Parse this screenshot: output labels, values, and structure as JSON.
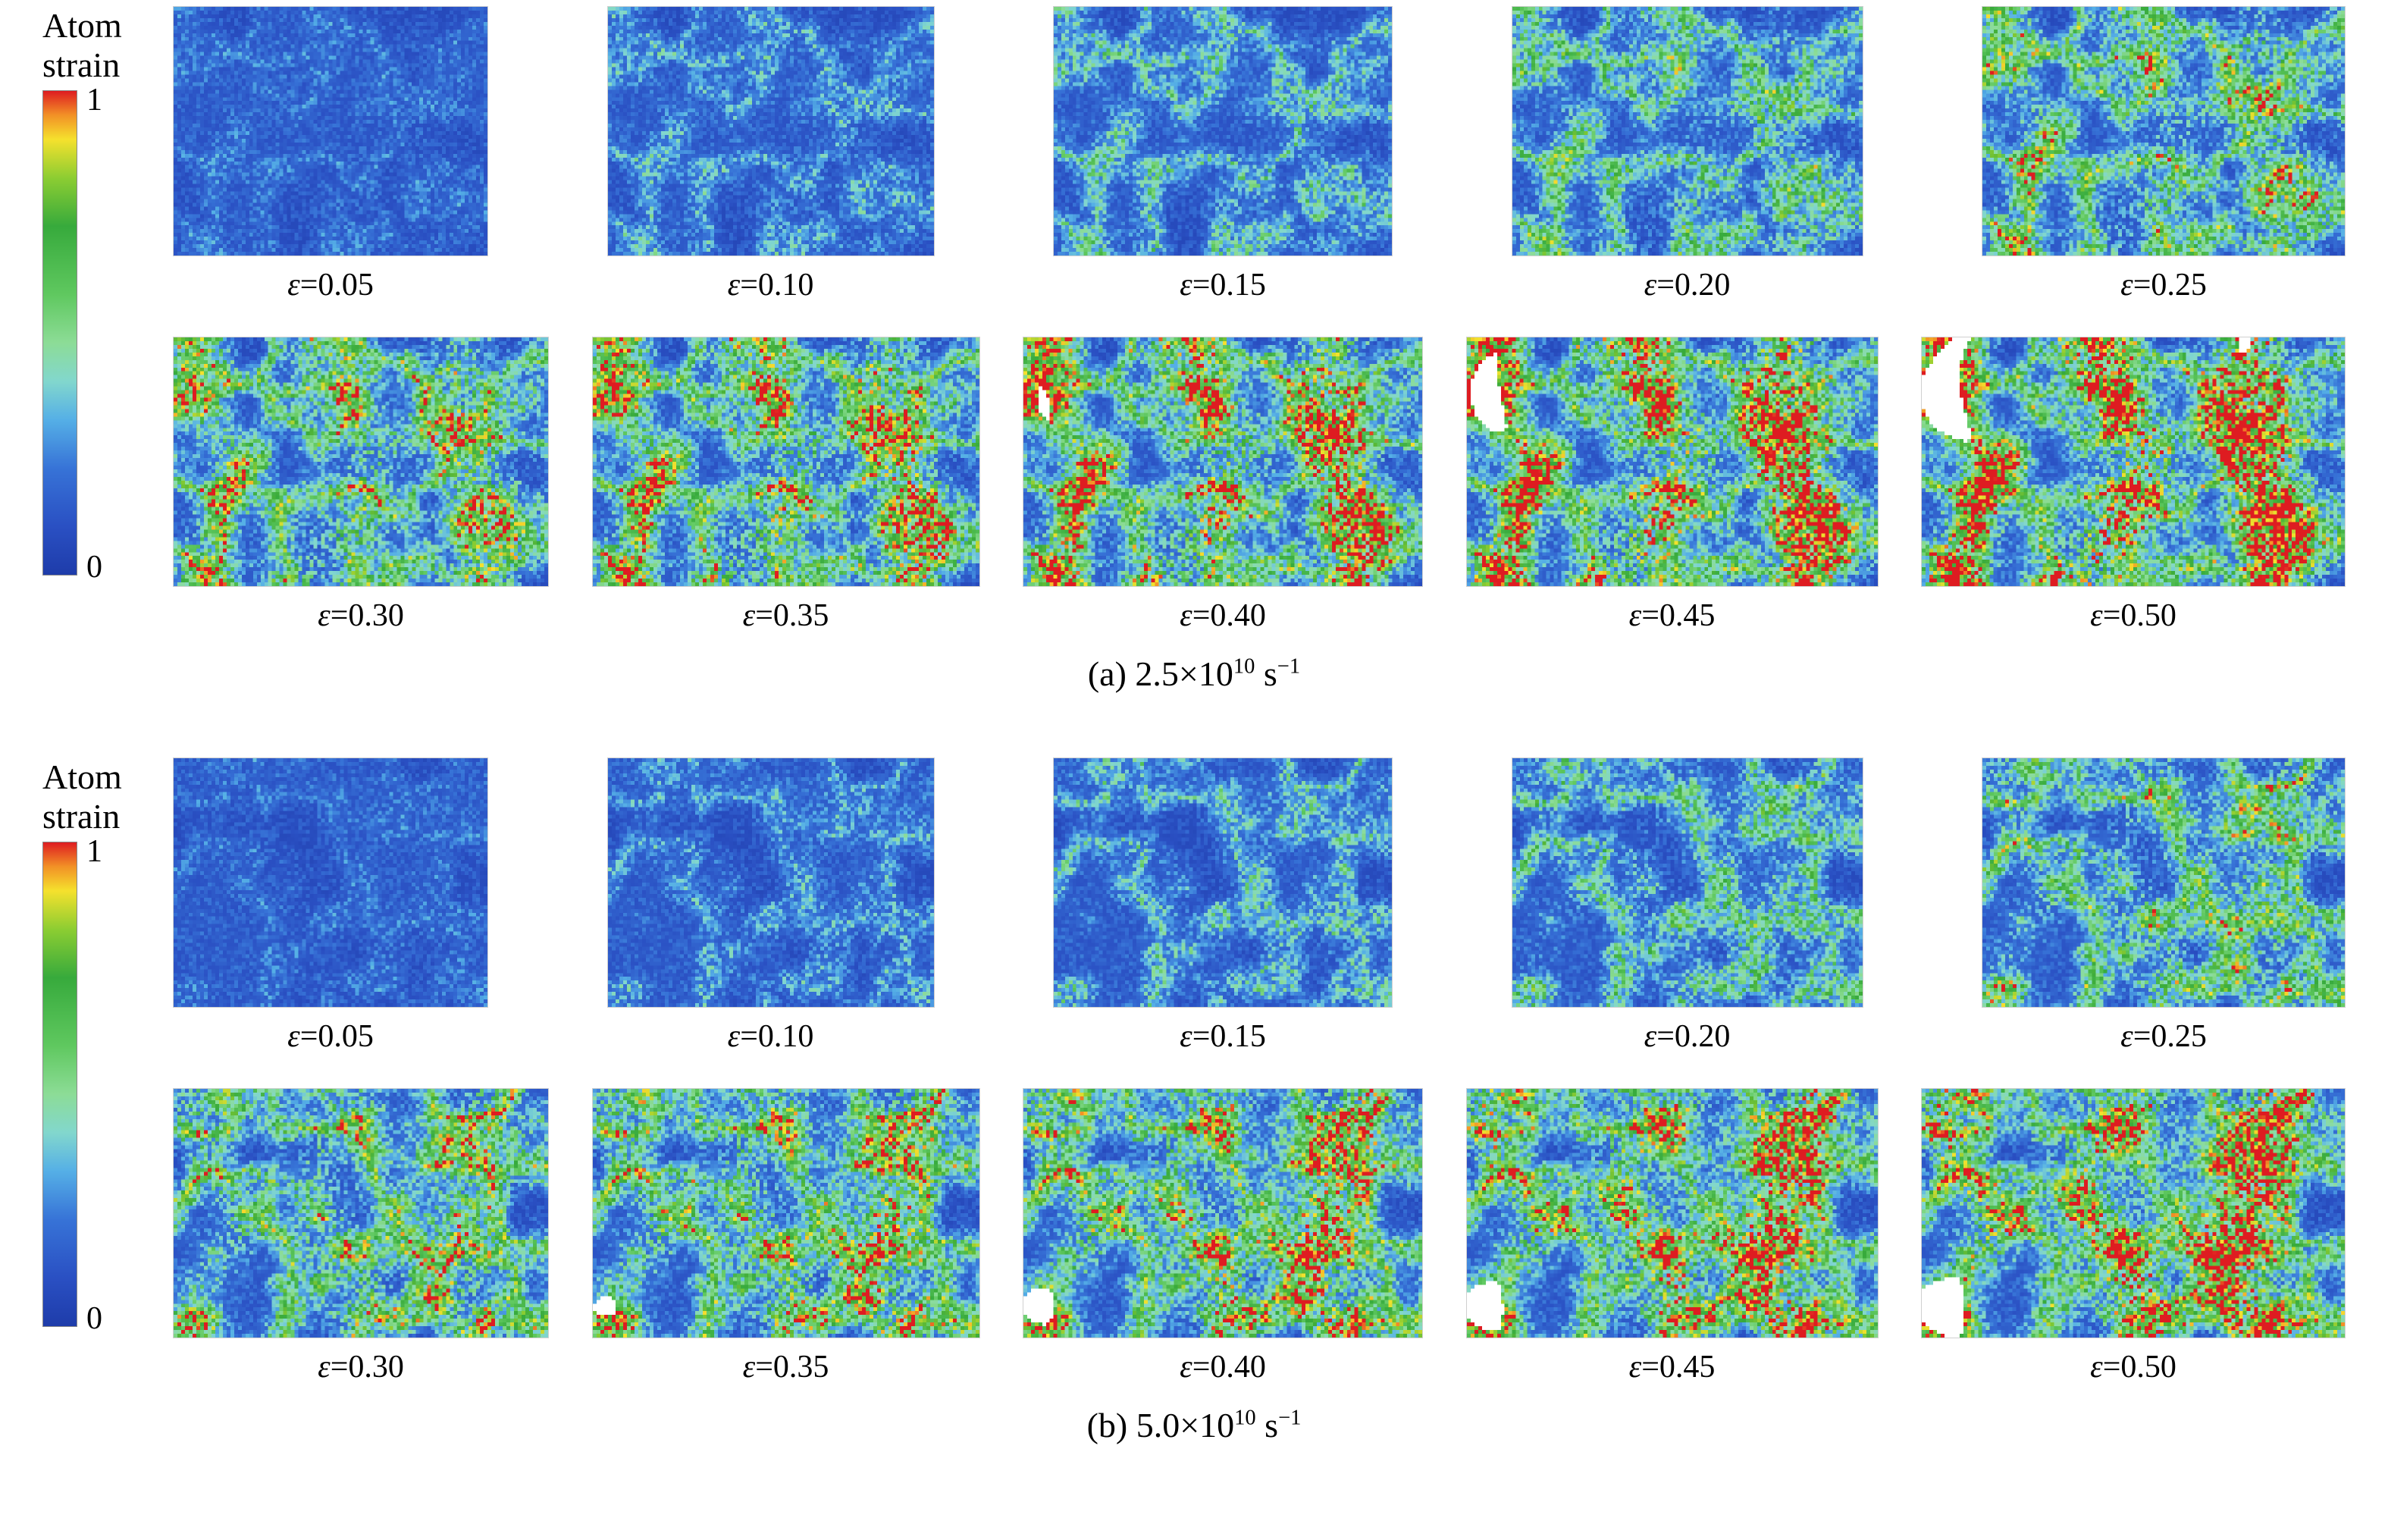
{
  "figure": {
    "epsilon": "ε"
  },
  "colorbar": {
    "title_line1": "Atom",
    "title_line2": "strain",
    "tick_max": "1",
    "tick_min": "0"
  },
  "colormap": {
    "stops": [
      {
        "v": 0.0,
        "rgb": [
          30,
          60,
          170
        ]
      },
      {
        "v": 0.1,
        "rgb": [
          42,
          80,
          195
        ]
      },
      {
        "v": 0.22,
        "rgb": [
          55,
          115,
          215
        ]
      },
      {
        "v": 0.32,
        "rgb": [
          85,
          175,
          230
        ]
      },
      {
        "v": 0.4,
        "rgb": [
          130,
          215,
          205
        ]
      },
      {
        "v": 0.48,
        "rgb": [
          140,
          220,
          150
        ]
      },
      {
        "v": 0.58,
        "rgb": [
          95,
          200,
          95
        ]
      },
      {
        "v": 0.72,
        "rgb": [
          55,
          170,
          60
        ]
      },
      {
        "v": 0.82,
        "rgb": [
          140,
          205,
          50
        ]
      },
      {
        "v": 0.9,
        "rgb": [
          245,
          225,
          45
        ]
      },
      {
        "v": 0.95,
        "rgb": [
          242,
          145,
          38
        ]
      },
      {
        "v": 1.0,
        "rgb": [
          222,
          28,
          33
        ]
      }
    ],
    "void_color": [
      255,
      255,
      255
    ]
  },
  "panels": [
    {
      "id": "a",
      "caption": {
        "prefix": "(a) 2.5×10",
        "exponent": "10",
        "unit": " s",
        "unit_exponent": "−1"
      },
      "rows": [
        {
          "snapshots": [
            {
              "value": 0.05,
              "label": "=0.05"
            },
            {
              "value": 0.1,
              "label": "=0.10"
            },
            {
              "value": 0.15,
              "label": "=0.15"
            },
            {
              "value": 0.2,
              "label": "=0.20"
            },
            {
              "value": 0.25,
              "label": "=0.25"
            }
          ]
        },
        {
          "snapshots": [
            {
              "value": 0.3,
              "label": "=0.30"
            },
            {
              "value": 0.35,
              "label": "=0.35"
            },
            {
              "value": 0.4,
              "label": "=0.40"
            },
            {
              "value": 0.45,
              "label": "=0.45"
            },
            {
              "value": 0.5,
              "label": "=0.50"
            }
          ]
        }
      ]
    },
    {
      "id": "b",
      "caption": {
        "prefix": "(b) 5.0×10",
        "exponent": "10",
        "unit": " s",
        "unit_exponent": "−1"
      },
      "rows": [
        {
          "snapshots": [
            {
              "value": 0.05,
              "label": "=0.05"
            },
            {
              "value": 0.1,
              "label": "=0.10"
            },
            {
              "value": 0.15,
              "label": "=0.15"
            },
            {
              "value": 0.2,
              "label": "=0.20"
            },
            {
              "value": 0.25,
              "label": "=0.25"
            }
          ]
        },
        {
          "snapshots": [
            {
              "value": 0.3,
              "label": "=0.30"
            },
            {
              "value": 0.35,
              "label": "=0.35"
            },
            {
              "value": 0.4,
              "label": "=0.40"
            },
            {
              "value": 0.45,
              "label": "=0.45"
            },
            {
              "value": 0.5,
              "label": "=0.50"
            }
          ]
        }
      ]
    }
  ]
}
